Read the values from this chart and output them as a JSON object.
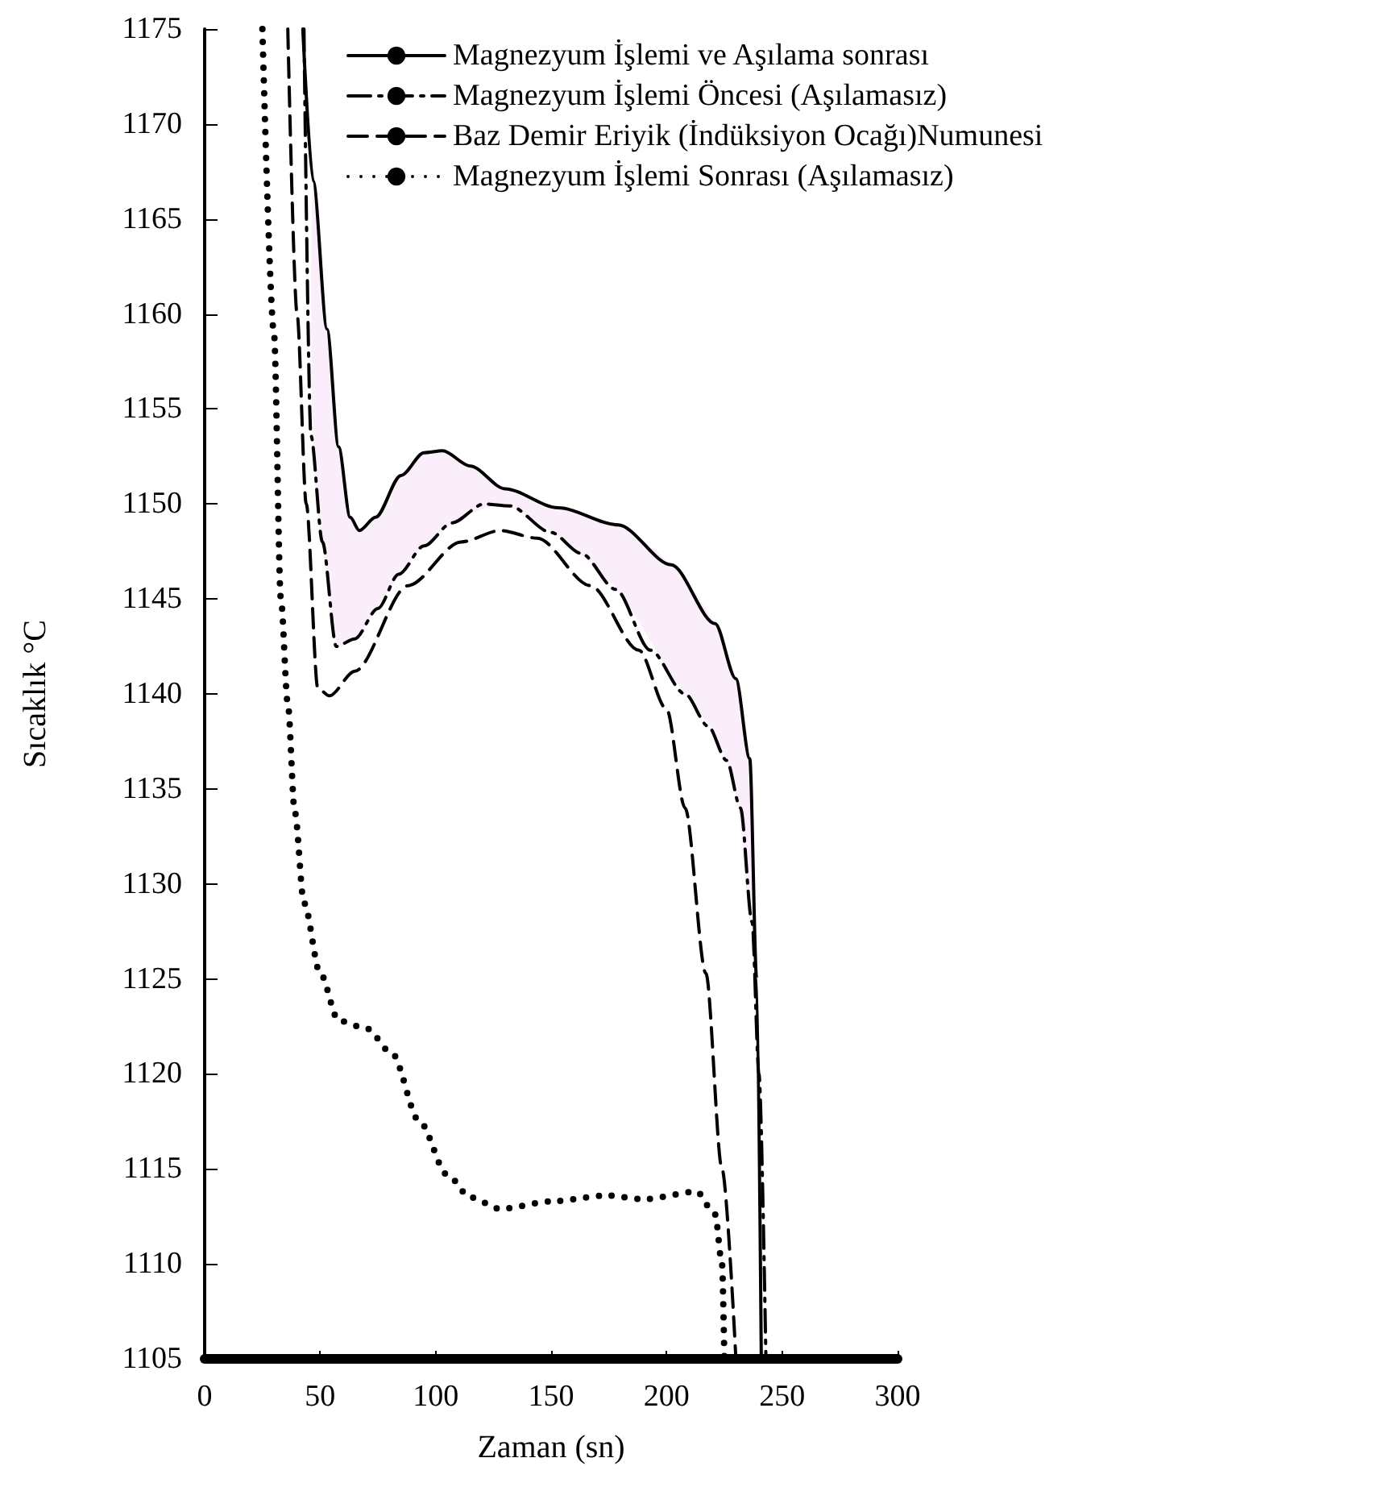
{
  "chart_data": {
    "type": "line",
    "xlabel": "Zaman (sn)",
    "ylabel": "Sıcaklık °C",
    "xlim": [
      0,
      300
    ],
    "xticks": [
      0,
      50,
      100,
      150,
      200,
      250,
      300
    ],
    "ylim": [
      1105,
      1175
    ],
    "yticks": [
      1105,
      1110,
      1115,
      1120,
      1125,
      1130,
      1135,
      1140,
      1145,
      1150,
      1155,
      1160,
      1165,
      1170,
      1175
    ],
    "grid": false,
    "legend": "top right",
    "marker": "none",
    "series": [
      {
        "name": "Magnezyum İşlemi ve Aşılama sonrası",
        "color": "#000000",
        "line_style": "solid",
        "x": [
          42.5,
          47,
          53,
          58,
          63,
          67,
          74,
          85,
          95,
          103,
          115,
          130,
          153,
          179,
          202,
          221,
          230,
          236,
          239,
          241
        ],
        "values": [
          1175,
          1167,
          1159.2,
          1153,
          1149.3,
          1148.6,
          1149.3,
          1151.5,
          1152.7,
          1152.8,
          1152,
          1150.8,
          1149.8,
          1148.9,
          1146.8,
          1143.7,
          1140.8,
          1136.6,
          1125,
          1105
        ],
        "upper": [
          null,
          1167,
          1159.2,
          1153,
          1149.3,
          1148.6,
          1149.3,
          1151.5,
          1152.7,
          1152.8,
          1152,
          1150.8,
          1149.8,
          1148.9,
          1146.8,
          1143.7,
          1140.8,
          1136.6,
          null,
          null
        ],
        "lower": [
          null,
          1152.5,
          1146,
          1142.5,
          1142.8,
          1143.2,
          1144.4,
          1146.4,
          1147.8,
          1148.6,
          1149.5,
          1149.9,
          1148.3,
          1145.4,
          1141,
          1137.8,
          1134.7,
          1128,
          null,
          null
        ]
      },
      {
        "name": "Magnezyum İşlemi Öncesi (Aşılamasız)",
        "color": "#000000",
        "line_style": "dashdot",
        "x": [
          43,
          46,
          51,
          57,
          65,
          75,
          84,
          95,
          107,
          121,
          132,
          150,
          163,
          178,
          193,
          208,
          218,
          226,
          232,
          237,
          240,
          243
        ],
        "values": [
          1175,
          1153.6,
          1148,
          1142.5,
          1142.9,
          1144.5,
          1146.3,
          1147.8,
          1149,
          1150,
          1149.9,
          1148.5,
          1147.4,
          1145.5,
          1142.3,
          1140,
          1138.3,
          1136.5,
          1134,
          1128,
          1120,
          1105
        ]
      },
      {
        "name": "Baz Demir Eriyik (İndüksiyon Ocağı)Numunesi",
        "color": "#000000",
        "line_style": "dashed",
        "x": [
          36,
          40,
          44,
          49,
          54,
          65,
          88,
          111,
          128,
          144,
          167,
          188,
          200,
          208,
          217,
          224,
          230
        ],
        "values": [
          1175,
          1160,
          1150,
          1140.3,
          1139.9,
          1141.2,
          1145.7,
          1148,
          1148.6,
          1148.2,
          1145.7,
          1142.3,
          1139.2,
          1134,
          1125.3,
          1115,
          1105
        ]
      },
      {
        "name": "Magnezyum İşlemi Sonrası (Aşılamasız)",
        "color": "#000000",
        "line_style": "dotted",
        "x": [
          25,
          30,
          33,
          36,
          39,
          43,
          50,
          58,
          70,
          81,
          93,
          105,
          115,
          128,
          151,
          174,
          190,
          213,
          221,
          224,
          225
        ],
        "values": [
          1175,
          1159,
          1145,
          1139.5,
          1133.8,
          1129,
          1125.3,
          1122.8,
          1122.4,
          1121.1,
          1117.5,
          1114.7,
          1113.5,
          1112.9,
          1113.3,
          1113.6,
          1113.4,
          1113.8,
          1112.6,
          1110,
          1105
        ]
      }
    ]
  }
}
